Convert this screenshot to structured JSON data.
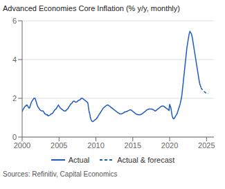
{
  "chart_data": {
    "type": "line",
    "title": "Advanced Economies Core Inflation (% y/y, monthly)",
    "annotations": [
      "Sources: Refinitiv, Capital Economics"
    ],
    "xlim": [
      2000,
      2026.0
    ],
    "xticks": [
      2000,
      2005,
      2010,
      2015,
      2020,
      2025
    ],
    "ylim": [
      0,
      6
    ],
    "yticks": [
      0,
      2,
      4,
      6
    ],
    "grid": "y",
    "legend": "bottom",
    "series": [
      {
        "name": "Actual",
        "color": "#1f5bbf",
        "line_style": "solid",
        "x": [
          2000.0,
          2000.083,
          2000.167,
          2000.25,
          2000.333,
          2000.417,
          2000.5,
          2000.583,
          2000.667,
          2000.75,
          2000.833,
          2000.917,
          2001.0,
          2001.083,
          2001.167,
          2001.25,
          2001.333,
          2001.417,
          2001.5,
          2001.583,
          2001.667,
          2001.75,
          2001.833,
          2001.917,
          2002.0,
          2002.083,
          2002.167,
          2002.25,
          2002.333,
          2002.417,
          2002.5,
          2002.583,
          2002.667,
          2002.75,
          2002.833,
          2002.917,
          2003.0,
          2003.083,
          2003.167,
          2003.25,
          2003.333,
          2003.417,
          2003.5,
          2003.583,
          2003.667,
          2003.75,
          2003.833,
          2003.917,
          2004.0,
          2004.083,
          2004.167,
          2004.25,
          2004.333,
          2004.417,
          2004.5,
          2004.583,
          2004.667,
          2004.75,
          2004.833,
          2004.917,
          2005.0,
          2005.083,
          2005.167,
          2005.25,
          2005.333,
          2005.417,
          2005.5,
          2005.583,
          2005.667,
          2005.75,
          2005.833,
          2005.917,
          2006.0,
          2006.083,
          2006.167,
          2006.25,
          2006.333,
          2006.417,
          2006.5,
          2006.583,
          2006.667,
          2006.75,
          2006.833,
          2006.917,
          2007.0,
          2007.083,
          2007.167,
          2007.25,
          2007.333,
          2007.417,
          2007.5,
          2007.583,
          2007.667,
          2007.75,
          2007.833,
          2007.917,
          2008.0,
          2008.083,
          2008.167,
          2008.25,
          2008.333,
          2008.417,
          2008.5,
          2008.583,
          2008.667,
          2008.75,
          2008.833,
          2008.917,
          2009.0,
          2009.083,
          2009.167,
          2009.25,
          2009.333,
          2009.417,
          2009.5,
          2009.583,
          2009.667,
          2009.75,
          2009.833,
          2009.917,
          2010.0,
          2010.083,
          2010.167,
          2010.25,
          2010.333,
          2010.417,
          2010.5,
          2010.583,
          2010.667,
          2010.75,
          2010.833,
          2010.917,
          2011.0,
          2011.083,
          2011.167,
          2011.25,
          2011.333,
          2011.417,
          2011.5,
          2011.583,
          2011.667,
          2011.75,
          2011.833,
          2011.917,
          2012.0,
          2012.083,
          2012.167,
          2012.25,
          2012.333,
          2012.417,
          2012.5,
          2012.583,
          2012.667,
          2012.75,
          2012.833,
          2012.917,
          2013.0,
          2013.083,
          2013.167,
          2013.25,
          2013.333,
          2013.417,
          2013.5,
          2013.583,
          2013.667,
          2013.75,
          2013.833,
          2013.917,
          2014.0,
          2014.083,
          2014.167,
          2014.25,
          2014.333,
          2014.417,
          2014.5,
          2014.583,
          2014.667,
          2014.75,
          2014.833,
          2014.917,
          2015.0,
          2015.083,
          2015.167,
          2015.25,
          2015.333,
          2015.417,
          2015.5,
          2015.583,
          2015.667,
          2015.75,
          2015.833,
          2015.917,
          2016.0,
          2016.083,
          2016.167,
          2016.25,
          2016.333,
          2016.417,
          2016.5,
          2016.583,
          2016.667,
          2016.75,
          2016.833,
          2016.917,
          2017.0,
          2017.083,
          2017.167,
          2017.25,
          2017.333,
          2017.417,
          2017.5,
          2017.583,
          2017.667,
          2017.75,
          2017.833,
          2017.917,
          2018.0,
          2018.083,
          2018.167,
          2018.25,
          2018.333,
          2018.417,
          2018.5,
          2018.583,
          2018.667,
          2018.75,
          2018.833,
          2018.917,
          2019.0,
          2019.083,
          2019.167,
          2019.25,
          2019.333,
          2019.417,
          2019.5,
          2019.583,
          2019.667,
          2019.75,
          2019.833,
          2019.917,
          2020.0,
          2020.083,
          2020.167,
          2020.25,
          2020.333,
          2020.417,
          2020.5,
          2020.583,
          2020.667,
          2020.75,
          2020.833,
          2020.917,
          2021.0,
          2021.083,
          2021.167,
          2021.25,
          2021.333,
          2021.417,
          2021.5,
          2021.583,
          2021.667,
          2021.75,
          2021.833,
          2021.917,
          2022.0,
          2022.083,
          2022.167,
          2022.25,
          2022.333,
          2022.417,
          2022.5,
          2022.583,
          2022.667,
          2022.75,
          2022.833,
          2022.917,
          2023.0,
          2023.083,
          2023.167,
          2023.25,
          2023.333,
          2023.417,
          2023.5,
          2023.583,
          2023.667,
          2023.75,
          2023.833,
          2023.917,
          2024.0,
          2024.083,
          2024.167,
          2024.25
        ],
        "values": [
          1.3,
          1.4,
          1.45,
          1.5,
          1.55,
          1.6,
          1.6,
          1.65,
          1.65,
          1.6,
          1.55,
          1.5,
          1.5,
          1.6,
          1.7,
          1.8,
          1.85,
          1.9,
          1.95,
          2.0,
          2.0,
          2.0,
          1.9,
          1.8,
          1.7,
          1.6,
          1.55,
          1.5,
          1.45,
          1.4,
          1.38,
          1.36,
          1.35,
          1.35,
          1.35,
          1.3,
          1.25,
          1.2,
          1.2,
          1.15,
          1.15,
          1.15,
          1.1,
          1.1,
          1.12,
          1.13,
          1.15,
          1.2,
          1.2,
          1.22,
          1.25,
          1.3,
          1.35,
          1.4,
          1.42,
          1.45,
          1.5,
          1.55,
          1.6,
          1.65,
          1.6,
          1.55,
          1.5,
          1.48,
          1.45,
          1.42,
          1.4,
          1.38,
          1.35,
          1.35,
          1.35,
          1.35,
          1.4,
          1.42,
          1.45,
          1.5,
          1.55,
          1.6,
          1.65,
          1.7,
          1.72,
          1.75,
          1.8,
          1.85,
          1.85,
          1.85,
          1.82,
          1.8,
          1.8,
          1.82,
          1.85,
          1.88,
          1.9,
          1.9,
          1.92,
          1.95,
          2.0,
          2.0,
          2.0,
          1.98,
          1.95,
          1.92,
          1.9,
          1.88,
          1.85,
          1.82,
          1.8,
          1.75,
          1.5,
          1.3,
          1.2,
          1.0,
          0.9,
          0.85,
          0.8,
          0.8,
          0.82,
          0.85,
          0.88,
          0.9,
          0.92,
          0.95,
          1.0,
          1.05,
          1.1,
          1.15,
          1.2,
          1.25,
          1.3,
          1.35,
          1.4,
          1.45,
          1.5,
          1.52,
          1.55,
          1.58,
          1.6,
          1.62,
          1.65,
          1.65,
          1.65,
          1.62,
          1.6,
          1.58,
          1.55,
          1.52,
          1.5,
          1.48,
          1.45,
          1.42,
          1.4,
          1.38,
          1.35,
          1.33,
          1.3,
          1.28,
          1.25,
          1.23,
          1.22,
          1.2,
          1.2,
          1.2,
          1.2,
          1.22,
          1.23,
          1.25,
          1.27,
          1.3,
          1.3,
          1.3,
          1.32,
          1.33,
          1.35,
          1.37,
          1.38,
          1.4,
          1.4,
          1.4,
          1.38,
          1.35,
          1.33,
          1.3,
          1.28,
          1.25,
          1.22,
          1.2,
          1.18,
          1.17,
          1.16,
          1.15,
          1.15,
          1.15,
          1.15,
          1.17,
          1.18,
          1.2,
          1.22,
          1.25,
          1.27,
          1.3,
          1.32,
          1.35,
          1.38,
          1.4,
          1.42,
          1.43,
          1.45,
          1.45,
          1.45,
          1.45,
          1.45,
          1.45,
          1.43,
          1.42,
          1.4,
          1.38,
          1.35,
          1.35,
          1.37,
          1.4,
          1.43,
          1.45,
          1.48,
          1.5,
          1.53,
          1.55,
          1.58,
          1.6,
          1.6,
          1.6,
          1.6,
          1.58,
          1.55,
          1.52,
          1.5,
          1.48,
          1.45,
          1.43,
          1.4,
          1.38,
          1.7,
          1.6,
          1.5,
          1.3,
          1.1,
          1.0,
          0.95,
          0.95,
          1.0,
          1.05,
          1.1,
          1.15,
          1.2,
          1.3,
          1.4,
          1.5,
          1.6,
          1.7,
          1.85,
          2.0,
          2.2,
          2.5,
          2.8,
          3.1,
          3.4,
          3.7,
          4.0,
          4.3,
          4.6,
          4.8,
          5.0,
          5.2,
          5.35,
          5.45,
          5.4,
          5.35,
          5.25,
          5.1,
          4.9,
          4.7,
          4.5,
          4.3,
          4.1,
          3.9,
          3.7,
          3.5,
          3.3,
          3.1,
          2.9,
          2.75,
          2.65,
          2.55
        ]
      },
      {
        "name": "Actual & forecast",
        "color": "#1f5bbf",
        "line_style": "dashed",
        "x": [
          2024.25,
          2024.333,
          2024.417,
          2024.5,
          2024.583,
          2024.667,
          2024.75,
          2024.833,
          2024.917,
          2025.0,
          2025.083,
          2025.167,
          2025.25
        ],
        "values": [
          2.55,
          2.5,
          2.45,
          2.4,
          2.38,
          2.35,
          2.33,
          2.3,
          2.28,
          2.25,
          2.25,
          2.25,
          2.25
        ]
      }
    ]
  }
}
